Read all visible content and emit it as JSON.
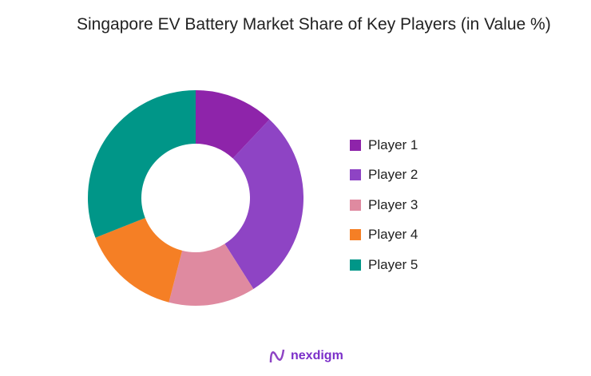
{
  "chart_data": {
    "type": "pie",
    "donut": true,
    "title": "Singapore EV Battery Market Share of Key Players (in Value %)",
    "categories": [
      "Player 1",
      "Player 2",
      "Player 3",
      "Player 4",
      "Player 5"
    ],
    "values": [
      12,
      29,
      13,
      15,
      31
    ],
    "colors": [
      "#8E24AA",
      "#8E44C4",
      "#DF8AA0",
      "#F57F25",
      "#009688"
    ],
    "legend_position": "right"
  },
  "logo": {
    "text": "nexdigm"
  }
}
